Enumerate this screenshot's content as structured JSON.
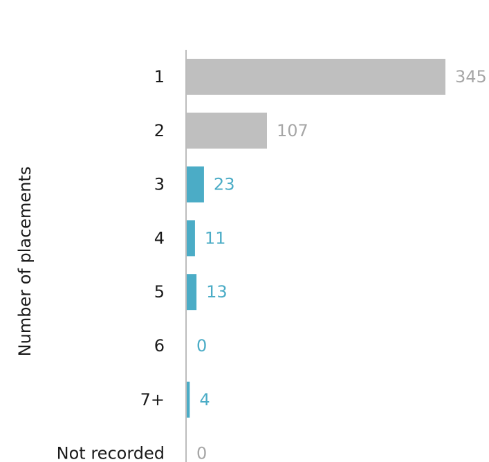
{
  "chart_data": {
    "type": "bar",
    "orientation": "horizontal",
    "categories": [
      "1",
      "2",
      "3",
      "4",
      "5",
      "6",
      "7+",
      "Not recorded"
    ],
    "values": [
      345,
      107,
      23,
      11,
      13,
      0,
      4,
      0
    ],
    "title": "",
    "ylabel": "Number of placements",
    "xlabel": "",
    "xlim": [
      0,
      345
    ],
    "grid": false,
    "legend": "none",
    "colors": {
      "gray": "#bfbfbf",
      "gray_text": "#a6a6a6",
      "blue": "#4bacc6",
      "axis": "#a6a6a6",
      "label": "#1a1a1a"
    },
    "bar_colors": [
      "gray",
      "gray",
      "blue",
      "blue",
      "blue",
      "blue",
      "blue",
      "gray"
    ]
  }
}
